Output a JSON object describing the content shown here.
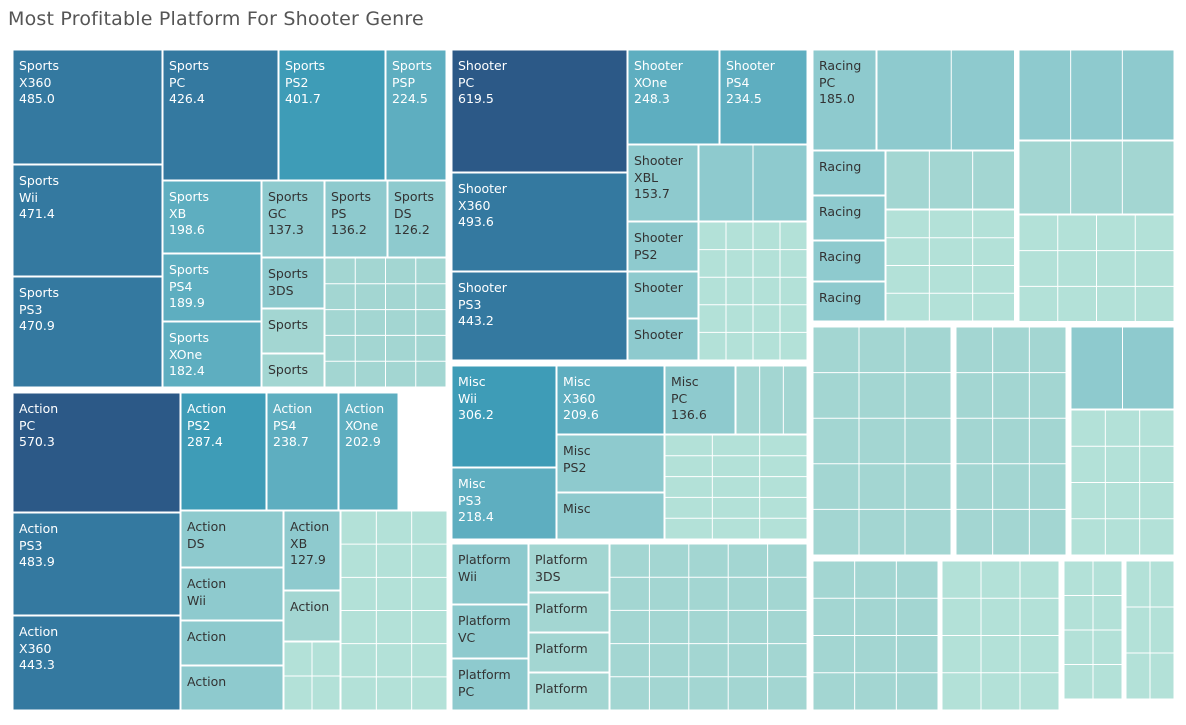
{
  "title": "Most Profitable Platform For Shooter Genre",
  "colors": {
    "background": "#ffffff",
    "title": "#555555",
    "divider": "#ffffff",
    "lightest": "#b3e1d8",
    "light": "#a3d6d2",
    "mid": "#8ecace",
    "midblue": "#5eaec0",
    "teal": "#3e9cb7",
    "blue": "#3479a0",
    "dark": "#2c5987"
  },
  "chart_data": {
    "type": "treemap",
    "title": "Most Profitable Platform For Shooter Genre",
    "groups": [
      {
        "genre": "Sports",
        "platforms": [
          {
            "platform": "X360",
            "value": 485.0
          },
          {
            "platform": "PC",
            "value": 426.4
          },
          {
            "platform": "PS2",
            "value": 401.7
          },
          {
            "platform": "PSP",
            "value": 224.5
          },
          {
            "platform": "Wii",
            "value": 471.4
          },
          {
            "platform": "PS3",
            "value": 470.9
          },
          {
            "platform": "XB",
            "value": 198.6
          },
          {
            "platform": "GC",
            "value": 137.3
          },
          {
            "platform": "PS",
            "value": 136.2
          },
          {
            "platform": "DS",
            "value": 126.2
          },
          {
            "platform": "PS4",
            "value": 189.9
          },
          {
            "platform": "XOne",
            "value": 182.4
          },
          {
            "platform": "3DS"
          }
        ]
      },
      {
        "genre": "Shooter",
        "platforms": [
          {
            "platform": "PC",
            "value": 619.5
          },
          {
            "platform": "XOne",
            "value": 248.3
          },
          {
            "platform": "PS4",
            "value": 234.5
          },
          {
            "platform": "XBL",
            "value": 153.7
          },
          {
            "platform": "X360",
            "value": 493.6
          },
          {
            "platform": "PS3",
            "value": 443.2
          },
          {
            "platform": "PS2"
          }
        ]
      },
      {
        "genre": "Racing",
        "platforms": [
          {
            "platform": "PC",
            "value": 185.0
          }
        ]
      },
      {
        "genre": "Action",
        "platforms": [
          {
            "platform": "PC",
            "value": 570.3
          },
          {
            "platform": "PS2",
            "value": 287.4
          },
          {
            "platform": "PS4",
            "value": 238.7
          },
          {
            "platform": "XOne",
            "value": 202.9
          },
          {
            "platform": "PS3",
            "value": 483.9
          },
          {
            "platform": "X360",
            "value": 443.3
          },
          {
            "platform": "XB",
            "value": 127.9
          },
          {
            "platform": "DS"
          },
          {
            "platform": "Wii"
          }
        ]
      },
      {
        "genre": "Misc",
        "platforms": [
          {
            "platform": "Wii",
            "value": 306.2
          },
          {
            "platform": "X360",
            "value": 209.6
          },
          {
            "platform": "PC",
            "value": 136.6
          },
          {
            "platform": "PS2"
          },
          {
            "platform": "PS3",
            "value": 218.4
          }
        ]
      },
      {
        "genre": "Platform",
        "platforms": [
          {
            "platform": "Wii"
          },
          {
            "platform": "3DS"
          },
          {
            "platform": "VC"
          },
          {
            "platform": "PC"
          }
        ]
      }
    ]
  }
}
